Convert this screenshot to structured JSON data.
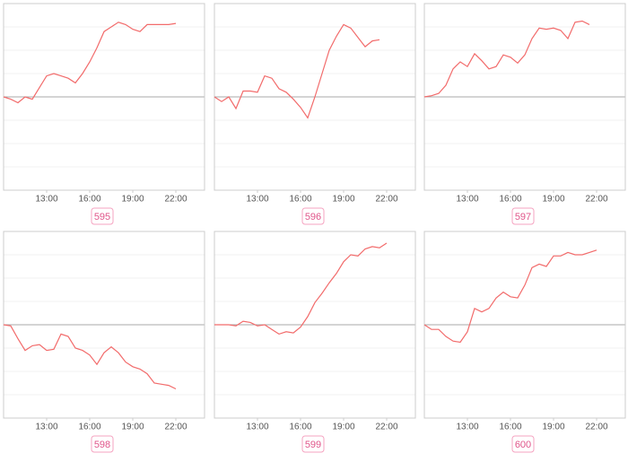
{
  "chart_data": [
    {
      "type": "line",
      "label": "595",
      "color": "#f26b6b",
      "grid": true,
      "x": [
        10,
        10.5,
        11,
        11.5,
        12,
        12.5,
        13,
        13.5,
        14,
        14.5,
        15,
        15.5,
        16,
        16.5,
        17,
        17.5,
        18,
        18.5,
        19,
        19.5,
        20,
        20.5,
        21,
        21.5,
        22
      ],
      "values": [
        0,
        -0.1,
        -0.25,
        0,
        -0.1,
        0.4,
        0.9,
        1.0,
        0.9,
        0.8,
        0.6,
        1.0,
        1.5,
        2.1,
        2.8,
        3.0,
        3.2,
        3.1,
        2.9,
        2.8,
        3.1,
        3.1,
        3.1,
        3.1,
        3.15
      ],
      "xlim": [
        10,
        24
      ],
      "xticks": [
        {
          "value": 13,
          "label": "13:00"
        },
        {
          "value": 16,
          "label": "16:00"
        },
        {
          "value": 19,
          "label": "19:00"
        },
        {
          "value": 22,
          "label": "22:00"
        }
      ],
      "ylim": [
        -4,
        4
      ],
      "yticks": [
        -4,
        -3,
        -2,
        -1,
        0,
        1,
        2,
        3,
        4
      ]
    },
    {
      "type": "line",
      "label": "596",
      "color": "#f26b6b",
      "grid": true,
      "x": [
        10,
        10.5,
        11,
        11.5,
        12,
        12.5,
        13,
        13.5,
        14,
        14.5,
        15,
        15.5,
        16,
        16.5,
        17,
        17.5,
        18,
        18.5,
        19,
        19.5,
        20,
        20.5,
        21,
        21.5,
        22
      ],
      "values": [
        0,
        -0.2,
        0,
        -0.5,
        0.25,
        0.25,
        0.2,
        0.9,
        0.8,
        0.35,
        0.2,
        -0.1,
        -0.45,
        -0.9,
        0,
        1.0,
        2.0,
        2.6,
        3.1,
        2.95,
        2.55,
        2.15,
        2.4,
        2.45,
        null
      ],
      "xlim": [
        10,
        24
      ],
      "xticks": [
        {
          "value": 13,
          "label": "13:00"
        },
        {
          "value": 16,
          "label": "16:00"
        },
        {
          "value": 19,
          "label": "19:00"
        },
        {
          "value": 22,
          "label": "22:00"
        }
      ],
      "ylim": [
        -4,
        4
      ],
      "yticks": [
        -4,
        -3,
        -2,
        -1,
        0,
        1,
        2,
        3,
        4
      ]
    },
    {
      "type": "line",
      "label": "597",
      "color": "#f26b6b",
      "grid": true,
      "x": [
        10,
        10.5,
        11,
        11.5,
        12,
        12.5,
        13,
        13.5,
        14,
        14.5,
        15,
        15.5,
        16,
        16.5,
        17,
        17.5,
        18,
        18.5,
        19,
        19.5,
        20,
        20.5,
        21,
        21.5,
        22
      ],
      "values": [
        0,
        0.05,
        0.15,
        0.5,
        1.2,
        1.5,
        1.3,
        1.85,
        1.55,
        1.2,
        1.3,
        1.8,
        1.7,
        1.45,
        1.8,
        2.5,
        2.95,
        2.9,
        2.95,
        2.85,
        2.5,
        3.2,
        3.25,
        3.1,
        null
      ],
      "xlim": [
        10,
        24
      ],
      "xticks": [
        {
          "value": 13,
          "label": "13:00"
        },
        {
          "value": 16,
          "label": "16:00"
        },
        {
          "value": 19,
          "label": "19:00"
        },
        {
          "value": 22,
          "label": "22:00"
        }
      ],
      "ylim": [
        -4,
        4
      ],
      "yticks": [
        -4,
        -3,
        -2,
        -1,
        0,
        1,
        2,
        3,
        4
      ]
    },
    {
      "type": "line",
      "label": "598",
      "color": "#f26b6b",
      "grid": true,
      "x": [
        10,
        10.5,
        11,
        11.5,
        12,
        12.5,
        13,
        13.5,
        14,
        14.5,
        15,
        15.5,
        16,
        16.5,
        17,
        17.5,
        18,
        18.5,
        19,
        19.5,
        20,
        20.5,
        21,
        21.5,
        22
      ],
      "values": [
        0,
        -0.05,
        -0.6,
        -1.1,
        -0.9,
        -0.85,
        -1.1,
        -1.05,
        -0.4,
        -0.5,
        -1.0,
        -1.1,
        -1.3,
        -1.7,
        -1.2,
        -0.95,
        -1.2,
        -1.6,
        -1.8,
        -1.9,
        -2.1,
        -2.5,
        -2.55,
        -2.6,
        -2.75
      ],
      "xlim": [
        10,
        24
      ],
      "xticks": [
        {
          "value": 13,
          "label": "13:00"
        },
        {
          "value": 16,
          "label": "16:00"
        },
        {
          "value": 19,
          "label": "19:00"
        },
        {
          "value": 22,
          "label": "22:00"
        }
      ],
      "ylim": [
        -4,
        4
      ],
      "yticks": [
        -4,
        -3,
        -2,
        -1,
        0,
        1,
        2,
        3,
        4
      ]
    },
    {
      "type": "line",
      "label": "599",
      "color": "#f26b6b",
      "grid": true,
      "x": [
        10,
        10.5,
        11,
        11.5,
        12,
        12.5,
        13,
        13.5,
        14,
        14.5,
        15,
        15.5,
        16,
        16.5,
        17,
        17.5,
        18,
        18.5,
        19,
        19.5,
        20,
        20.5,
        21,
        21.5,
        22
      ],
      "values": [
        0,
        0,
        0,
        -0.05,
        0.15,
        0.1,
        -0.05,
        0,
        -0.2,
        -0.4,
        -0.3,
        -0.35,
        -0.1,
        0.35,
        0.95,
        1.35,
        1.8,
        2.2,
        2.7,
        3.0,
        2.95,
        3.25,
        3.35,
        3.3,
        3.5
      ],
      "xlim": [
        10,
        24
      ],
      "xticks": [
        {
          "value": 13,
          "label": "13:00"
        },
        {
          "value": 16,
          "label": "16:00"
        },
        {
          "value": 19,
          "label": "19:00"
        },
        {
          "value": 22,
          "label": "22:00"
        }
      ],
      "ylim": [
        -4,
        4
      ],
      "yticks": [
        -4,
        -3,
        -2,
        -1,
        0,
        1,
        2,
        3,
        4
      ]
    },
    {
      "type": "line",
      "label": "600",
      "color": "#f26b6b",
      "grid": true,
      "x": [
        10,
        10.5,
        11,
        11.5,
        12,
        12.5,
        13,
        13.5,
        14,
        14.5,
        15,
        15.5,
        16,
        16.5,
        17,
        17.5,
        18,
        18.5,
        19,
        19.5,
        20,
        20.5,
        21,
        21.5,
        22
      ],
      "values": [
        0,
        -0.2,
        -0.2,
        -0.5,
        -0.7,
        -0.75,
        -0.3,
        0.7,
        0.55,
        0.7,
        1.15,
        1.4,
        1.2,
        1.15,
        1.7,
        2.45,
        2.6,
        2.5,
        2.95,
        2.95,
        3.1,
        3.0,
        3.0,
        3.1,
        3.2
      ],
      "xlim": [
        10,
        24
      ],
      "xticks": [
        {
          "value": 13,
          "label": "13:00"
        },
        {
          "value": 16,
          "label": "16:00"
        },
        {
          "value": 19,
          "label": "19:00"
        },
        {
          "value": 22,
          "label": "22:00"
        }
      ],
      "ylim": [
        -4,
        4
      ],
      "yticks": [
        -4,
        -3,
        -2,
        -1,
        0,
        1,
        2,
        3,
        4
      ]
    }
  ]
}
